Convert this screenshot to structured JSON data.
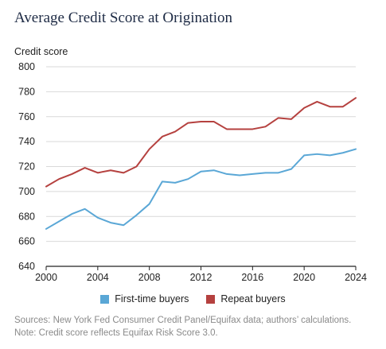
{
  "title": "Average Credit Score at Origination",
  "chart_data": {
    "type": "line",
    "title": "Average Credit Score at Origination",
    "ylabel": "Credit score",
    "xlabel": "",
    "xlim": [
      2000,
      2024
    ],
    "ylim": [
      640,
      800
    ],
    "xticks": [
      2000,
      2004,
      2008,
      2012,
      2016,
      2020,
      2024
    ],
    "yticks": [
      640,
      660,
      680,
      700,
      720,
      740,
      760,
      780,
      800
    ],
    "grid": "horizontal",
    "legend_position": "bottom",
    "x": [
      2000,
      2001,
      2002,
      2003,
      2004,
      2005,
      2006,
      2007,
      2008,
      2009,
      2010,
      2011,
      2012,
      2013,
      2014,
      2015,
      2016,
      2017,
      2018,
      2019,
      2020,
      2021,
      2022,
      2023,
      2024
    ],
    "series": [
      {
        "name": "First-time buyers",
        "color": "#5aa7d6",
        "values": [
          670,
          676,
          682,
          686,
          679,
          675,
          673,
          681,
          690,
          708,
          707,
          710,
          716,
          717,
          714,
          713,
          714,
          715,
          715,
          718,
          729,
          730,
          729,
          731,
          734
        ]
      },
      {
        "name": "Repeat buyers",
        "color": "#b5413f",
        "values": [
          704,
          710,
          714,
          719,
          715,
          717,
          715,
          720,
          734,
          744,
          748,
          755,
          756,
          756,
          750,
          750,
          750,
          752,
          759,
          758,
          767,
          772,
          768,
          768,
          775
        ]
      }
    ]
  },
  "notes": {
    "sources": "Sources: New York Fed Consumer Credit Panel/Equifax data; authors’ calculations.",
    "note": "Note: Credit score reflects Equifax Risk Score 3.0."
  }
}
